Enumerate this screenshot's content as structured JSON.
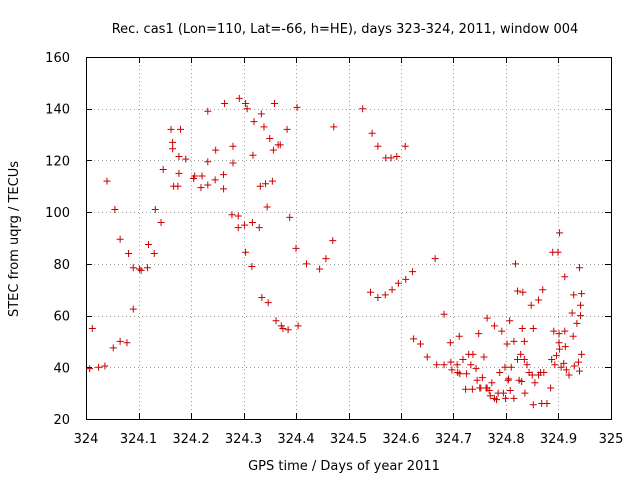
{
  "chart_data": {
    "type": "scatter",
    "title": "Rec. cas1 (Lon=110, Lat=-66, h=HE), days 323-324, 2011, window 004",
    "xlabel": "GPS time / Days of year 2011",
    "ylabel": "STEC from uqrg / TECUs",
    "xlim": [
      324,
      325
    ],
    "ylim": [
      20,
      160
    ],
    "xticks": [
      324,
      324.1,
      324.2,
      324.3,
      324.4,
      324.5,
      324.6,
      324.7,
      324.8,
      324.9,
      325
    ],
    "xtick_labels": [
      "324",
      "324.1",
      "324.2",
      "324.3",
      "324.4",
      "324.5",
      "324.6",
      "324.7",
      "324.8",
      "324.9",
      "325"
    ],
    "yticks": [
      20,
      40,
      60,
      80,
      100,
      120,
      140,
      160
    ],
    "ytick_labels": [
      "20",
      "40",
      "60",
      "80",
      "100",
      "120",
      "140",
      "160"
    ],
    "grid": true,
    "marker": "+",
    "color": "#cc0000",
    "series": [
      {
        "points": [
          [
            324.007,
            39.5
          ],
          [
            324.012,
            55
          ],
          [
            324.024,
            40
          ],
          [
            324.036,
            40.5
          ],
          [
            324.04,
            112
          ],
          [
            324.052,
            47.5
          ],
          [
            324.055,
            101
          ],
          [
            324.065,
            89.5
          ],
          [
            324.065,
            50
          ],
          [
            324.078,
            49.5
          ],
          [
            324.081,
            84
          ],
          [
            324.09,
            62.5
          ],
          [
            324.09,
            78.5
          ],
          [
            324.102,
            78
          ],
          [
            324.105,
            77.5
          ],
          [
            324.117,
            78.5
          ],
          [
            324.119,
            87.5
          ],
          [
            324.13,
            84
          ],
          [
            324.132,
            101
          ],
          [
            324.143,
            96
          ],
          [
            324.147,
            116.5
          ],
          [
            324.162,
            132
          ],
          [
            324.165,
            127
          ],
          [
            324.165,
            124.5
          ],
          [
            324.167,
            110
          ],
          [
            324.175,
            110
          ],
          [
            324.177,
            121.5
          ],
          [
            324.177,
            115
          ],
          [
            324.18,
            132
          ],
          [
            324.19,
            120.5
          ],
          [
            324.205,
            113
          ],
          [
            324.207,
            114
          ],
          [
            324.219,
            109.5
          ],
          [
            324.221,
            114
          ],
          [
            324.232,
            110.5
          ],
          [
            324.232,
            119.5
          ],
          [
            324.232,
            139
          ],
          [
            324.247,
            124
          ],
          [
            324.246,
            112.5
          ],
          [
            324.262,
            109
          ],
          [
            324.262,
            114.5
          ],
          [
            324.264,
            142
          ],
          [
            324.28,
            119
          ],
          [
            324.28,
            125.5
          ],
          [
            324.278,
            99
          ],
          [
            324.29,
            98.5
          ],
          [
            324.29,
            94
          ],
          [
            324.292,
            144
          ],
          [
            324.302,
            95
          ],
          [
            324.304,
            84.5
          ],
          [
            324.304,
            142
          ],
          [
            324.307,
            140
          ],
          [
            324.316,
            79
          ],
          [
            324.317,
            96
          ],
          [
            324.318,
            122
          ],
          [
            324.32,
            135
          ],
          [
            324.33,
            94
          ],
          [
            324.332,
            110
          ],
          [
            324.334,
            138
          ],
          [
            324.335,
            67
          ],
          [
            324.339,
            133
          ],
          [
            324.342,
            111
          ],
          [
            324.345,
            102
          ],
          [
            324.347,
            65
          ],
          [
            324.35,
            128.5
          ],
          [
            324.355,
            112
          ],
          [
            324.357,
            124
          ],
          [
            324.359,
            142
          ],
          [
            324.362,
            58
          ],
          [
            324.366,
            126
          ],
          [
            324.37,
            126
          ],
          [
            324.372,
            56
          ],
          [
            324.375,
            55
          ],
          [
            324.383,
            132
          ],
          [
            324.385,
            54.5
          ],
          [
            324.388,
            98
          ],
          [
            324.4,
            86
          ],
          [
            324.402,
            140.5
          ],
          [
            324.404,
            56
          ],
          [
            324.42,
            80
          ],
          [
            324.445,
            78
          ],
          [
            324.457,
            82
          ],
          [
            324.47,
            89
          ],
          [
            324.472,
            133
          ],
          [
            324.527,
            140
          ],
          [
            324.542,
            69
          ],
          [
            324.545,
            130.5
          ],
          [
            324.556,
            67
          ],
          [
            324.556,
            125.5
          ],
          [
            324.57,
            68
          ],
          [
            324.571,
            121
          ],
          [
            324.581,
            121
          ],
          [
            324.583,
            70
          ],
          [
            324.592,
            121.5
          ],
          [
            324.595,
            72.5
          ],
          [
            324.608,
            125.5
          ],
          [
            324.609,
            74
          ],
          [
            324.622,
            77
          ],
          [
            324.624,
            51
          ],
          [
            324.637,
            49
          ],
          [
            324.65,
            44
          ],
          [
            324.665,
            82
          ],
          [
            324.668,
            41
          ],
          [
            324.682,
            60.5
          ],
          [
            324.682,
            41
          ],
          [
            324.694,
            49.5
          ],
          [
            324.695,
            42
          ],
          [
            324.697,
            39
          ],
          [
            324.707,
            41
          ],
          [
            324.708,
            38
          ],
          [
            324.711,
            52
          ],
          [
            324.712,
            37.5
          ],
          [
            324.718,
            43
          ],
          [
            324.723,
            31.5
          ],
          [
            324.725,
            37.5
          ],
          [
            324.729,
            45
          ],
          [
            324.733,
            41
          ],
          [
            324.736,
            31.5
          ],
          [
            324.737,
            45
          ],
          [
            324.743,
            39.5
          ],
          [
            324.745,
            35
          ],
          [
            324.748,
            53
          ],
          [
            324.75,
            32
          ],
          [
            324.752,
            32
          ],
          [
            324.755,
            36
          ],
          [
            324.758,
            44
          ],
          [
            324.762,
            32
          ],
          [
            324.764,
            59
          ],
          [
            324.764,
            32
          ],
          [
            324.768,
            31
          ],
          [
            324.77,
            29
          ],
          [
            324.773,
            34
          ],
          [
            324.778,
            56
          ],
          [
            324.778,
            28
          ],
          [
            324.782,
            27.5
          ],
          [
            324.785,
            30
          ],
          [
            324.788,
            38
          ],
          [
            324.792,
            54
          ],
          [
            324.795,
            30
          ],
          [
            324.798,
            40
          ],
          [
            324.799,
            28
          ],
          [
            324.802,
            49
          ],
          [
            324.804,
            35
          ],
          [
            324.805,
            35.5
          ],
          [
            324.807,
            58
          ],
          [
            324.808,
            31
          ],
          [
            324.81,
            40
          ],
          [
            324.815,
            50
          ],
          [
            324.815,
            28
          ],
          [
            324.818,
            80
          ],
          [
            324.822,
            43
          ],
          [
            324.822,
            69.5
          ],
          [
            324.825,
            35
          ],
          [
            324.828,
            45
          ],
          [
            324.83,
            34.5
          ],
          [
            324.831,
            55
          ],
          [
            324.832,
            69
          ],
          [
            324.835,
            43
          ],
          [
            324.835,
            50
          ],
          [
            324.836,
            30
          ],
          [
            324.84,
            41
          ],
          [
            324.844,
            38
          ],
          [
            324.848,
            64
          ],
          [
            324.85,
            37
          ],
          [
            324.852,
            25.5
          ],
          [
            324.852,
            55
          ],
          [
            324.855,
            34
          ],
          [
            324.862,
            37
          ],
          [
            324.862,
            66
          ],
          [
            324.866,
            38
          ],
          [
            324.868,
            26
          ],
          [
            324.87,
            70
          ],
          [
            324.872,
            38
          ],
          [
            324.878,
            26
          ],
          [
            324.885,
            32
          ],
          [
            324.887,
            43
          ],
          [
            324.889,
            84.5
          ],
          [
            324.891,
            54
          ],
          [
            324.893,
            41
          ],
          [
            324.896,
            44.5
          ],
          [
            324.899,
            84.5
          ],
          [
            324.901,
            53
          ],
          [
            324.901,
            49.5
          ],
          [
            324.902,
            92
          ],
          [
            324.902,
            47
          ],
          [
            324.905,
            40
          ],
          [
            324.91,
            41.5
          ],
          [
            324.912,
            75
          ],
          [
            324.912,
            54
          ],
          [
            324.913,
            48
          ],
          [
            324.915,
            39
          ],
          [
            324.92,
            37
          ],
          [
            324.926,
            61
          ],
          [
            324.928,
            52
          ],
          [
            324.929,
            68
          ],
          [
            324.93,
            40.5
          ],
          [
            324.935,
            57
          ],
          [
            324.938,
            42
          ],
          [
            324.94,
            78.5
          ],
          [
            324.94,
            38.5
          ],
          [
            324.942,
            60
          ],
          [
            324.942,
            64
          ],
          [
            324.944,
            68.5
          ],
          [
            324.944,
            45
          ]
        ]
      }
    ]
  }
}
